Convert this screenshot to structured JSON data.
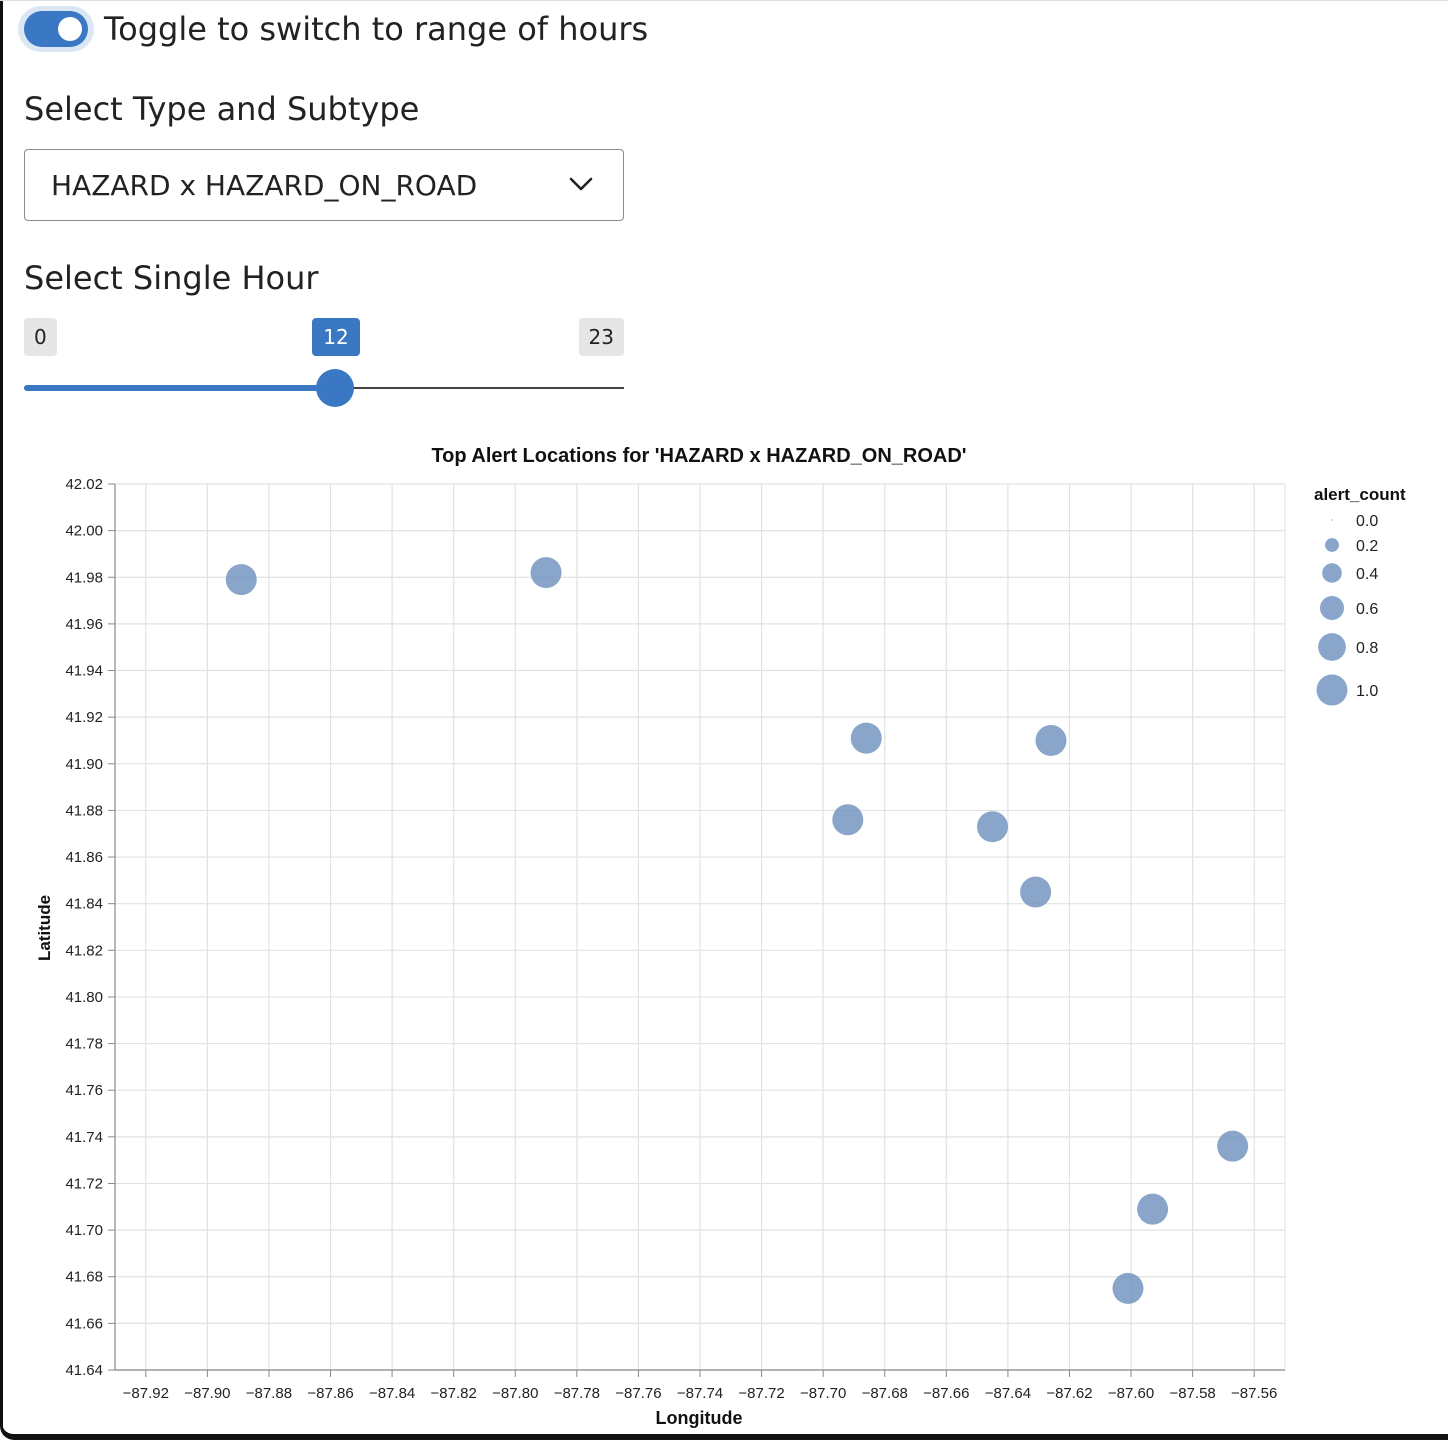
{
  "toggle": {
    "label": "Toggle to switch to range of hours",
    "on": true
  },
  "type_select": {
    "label": "Select Type and Subtype",
    "value": "HAZARD x HAZARD_ON_ROAD"
  },
  "hour_slider": {
    "label": "Select Single Hour",
    "min": "0",
    "max": "23",
    "value": "12"
  },
  "colors": {
    "accent": "#3a78c3",
    "point": "#6f91bd",
    "grid": "#e2e2e2"
  },
  "chart_data": {
    "type": "scatter",
    "title": "Top Alert Locations for 'HAZARD x HAZARD_ON_ROAD'",
    "xlabel": "Longitude",
    "ylabel": "Latitude",
    "xlim": [
      -87.93,
      -87.55
    ],
    "ylim": [
      41.64,
      42.02
    ],
    "x_ticks": [
      "-87.92",
      "-87.90",
      "-87.88",
      "-87.86",
      "-87.84",
      "-87.82",
      "-87.80",
      "-87.78",
      "-87.76",
      "-87.74",
      "-87.72",
      "-87.70",
      "-87.68",
      "-87.66",
      "-87.64",
      "-87.62",
      "-87.60",
      "-87.58",
      "-87.56"
    ],
    "y_ticks": [
      "42.02",
      "42.00",
      "41.98",
      "41.96",
      "41.94",
      "41.92",
      "41.90",
      "41.88",
      "41.86",
      "41.84",
      "41.82",
      "41.80",
      "41.78",
      "41.76",
      "41.74",
      "41.72",
      "41.70",
      "41.68",
      "41.66",
      "41.64"
    ],
    "grid": true,
    "legend": {
      "title": "alert_count",
      "position": "right",
      "items": [
        "0.0",
        "0.2",
        "0.4",
        "0.6",
        "0.8",
        "1.0"
      ],
      "values": [
        0.0,
        0.2,
        0.4,
        0.6,
        0.8,
        1.0
      ]
    },
    "points": [
      {
        "x": -87.889,
        "y": 41.979,
        "alert_count": 1
      },
      {
        "x": -87.79,
        "y": 41.982,
        "alert_count": 1
      },
      {
        "x": -87.686,
        "y": 41.911,
        "alert_count": 1
      },
      {
        "x": -87.626,
        "y": 41.91,
        "alert_count": 1
      },
      {
        "x": -87.692,
        "y": 41.876,
        "alert_count": 1
      },
      {
        "x": -87.645,
        "y": 41.873,
        "alert_count": 1
      },
      {
        "x": -87.631,
        "y": 41.845,
        "alert_count": 1
      },
      {
        "x": -87.567,
        "y": 41.736,
        "alert_count": 1
      },
      {
        "x": -87.593,
        "y": 41.709,
        "alert_count": 1
      },
      {
        "x": -87.601,
        "y": 41.675,
        "alert_count": 1
      }
    ]
  }
}
